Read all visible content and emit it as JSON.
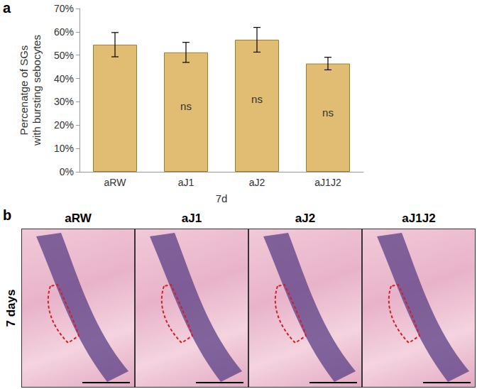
{
  "chart_data": {
    "type": "bar",
    "categories": [
      "aRW",
      "aJ1",
      "aJ2",
      "aJ1J2"
    ],
    "values": [
      54.5,
      51.2,
      56.6,
      46.4
    ],
    "errors": [
      5.2,
      4.3,
      5.3,
      2.7
    ],
    "color": "#e0bd72",
    "ylabel": "Percenatge of SGs\nwith bursting sebocytes",
    "xlabel": "7d",
    "ylim": [
      0,
      70
    ],
    "yticks": [
      {
        "value": 0,
        "label": "0%"
      },
      {
        "value": 10,
        "label": "10%"
      },
      {
        "value": 20,
        "label": "20%"
      },
      {
        "value": 30,
        "label": "30%"
      },
      {
        "value": 40,
        "label": "40%"
      },
      {
        "value": 50,
        "label": "50%"
      },
      {
        "value": 60,
        "label": "60%"
      },
      {
        "value": 70,
        "label": "70%"
      }
    ],
    "annotations": [
      {
        "category": "aJ1",
        "text": "ns"
      },
      {
        "category": "aJ2",
        "text": "ns"
      },
      {
        "category": "aJ1J2",
        "text": "ns"
      }
    ],
    "grid": false
  },
  "panels": [
    "a",
    "b"
  ],
  "panel_b": {
    "row_label": "7 days",
    "columns": [
      "aRW",
      "aJ1",
      "aJ2",
      "aJ1J2"
    ]
  }
}
